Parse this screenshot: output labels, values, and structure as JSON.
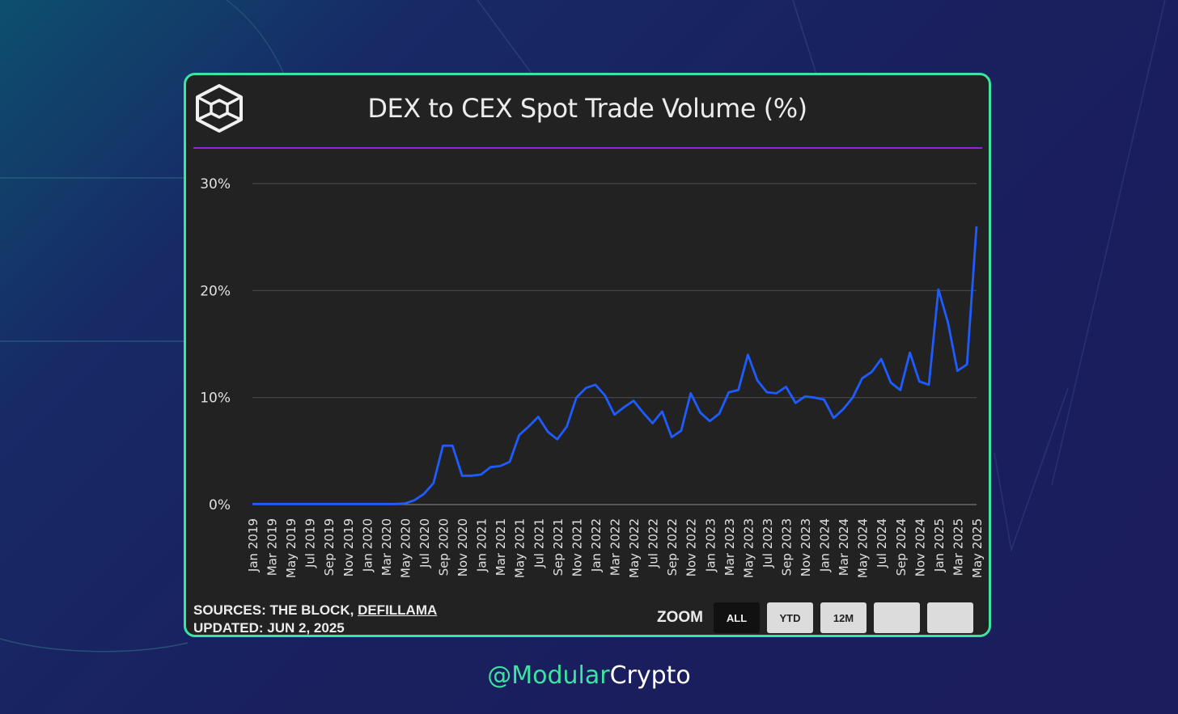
{
  "brand": {
    "logo_icon": "the-block-cube-icon",
    "handle_accent": "@Modular",
    "handle_rest": "Crypto",
    "accent_color": "#3de3a0",
    "divider_color": "#9b1fd8"
  },
  "chart_data": {
    "type": "line",
    "title": "DEX to CEX Spot Trade Volume (%)",
    "xlabel": "",
    "ylabel": "",
    "ylim": [
      0,
      30
    ],
    "y_ticks": [
      0,
      10,
      20,
      30
    ],
    "y_tick_labels": [
      "0%",
      "10%",
      "20%",
      "30%"
    ],
    "grid": true,
    "x_tick_labels": [
      "Jan 2019",
      "Mar 2019",
      "May 2019",
      "Jul 2019",
      "Sep 2019",
      "Nov 2019",
      "Jan 2020",
      "Mar 2020",
      "May 2020",
      "Jul 2020",
      "Sep 2020",
      "Nov 2020",
      "Jan 2021",
      "Mar 2021",
      "May 2021",
      "Jul 2021",
      "Sep 2021",
      "Nov 2021",
      "Jan 2022",
      "Mar 2022",
      "May 2022",
      "Jul 2022",
      "Sep 2022",
      "Nov 2022",
      "Jan 2023",
      "Mar 2023",
      "May 2023",
      "Jul 2023",
      "Sep 2023",
      "Nov 2023",
      "Jan 2024",
      "Mar 2024",
      "May 2024",
      "Jul 2024",
      "Sep 2024",
      "Nov 2024",
      "Jan 2025",
      "Mar 2025",
      "May 2025"
    ],
    "series": [
      {
        "color": "#1f5cff",
        "x": [
          "Jan 2019",
          "Feb 2019",
          "Mar 2019",
          "Apr 2019",
          "May 2019",
          "Jun 2019",
          "Jul 2019",
          "Aug 2019",
          "Sep 2019",
          "Oct 2019",
          "Nov 2019",
          "Dec 2019",
          "Jan 2020",
          "Feb 2020",
          "Mar 2020",
          "Apr 2020",
          "May 2020",
          "Jun 2020",
          "Jul 2020",
          "Aug 2020",
          "Sep 2020",
          "Oct 2020",
          "Nov 2020",
          "Dec 2020",
          "Jan 2021",
          "Feb 2021",
          "Mar 2021",
          "Apr 2021",
          "May 2021",
          "Jun 2021",
          "Jul 2021",
          "Aug 2021",
          "Sep 2021",
          "Oct 2021",
          "Nov 2021",
          "Dec 2021",
          "Jan 2022",
          "Feb 2022",
          "Mar 2022",
          "Apr 2022",
          "May 2022",
          "Jun 2022",
          "Jul 2022",
          "Aug 2022",
          "Sep 2022",
          "Oct 2022",
          "Nov 2022",
          "Dec 2022",
          "Jan 2023",
          "Feb 2023",
          "Mar 2023",
          "Apr 2023",
          "May 2023",
          "Jun 2023",
          "Jul 2023",
          "Aug 2023",
          "Sep 2023",
          "Oct 2023",
          "Nov 2023",
          "Dec 2023",
          "Jan 2024",
          "Feb 2024",
          "Mar 2024",
          "Apr 2024",
          "May 2024",
          "Jun 2024",
          "Jul 2024",
          "Aug 2024",
          "Sep 2024",
          "Oct 2024",
          "Nov 2024",
          "Dec 2024",
          "Jan 2025",
          "Feb 2025",
          "Mar 2025",
          "Apr 2025",
          "May 2025"
        ],
        "values": [
          0.05,
          0.05,
          0.05,
          0.05,
          0.05,
          0.05,
          0.05,
          0.05,
          0.05,
          0.05,
          0.05,
          0.05,
          0.05,
          0.05,
          0.05,
          0.05,
          0.1,
          0.4,
          1.0,
          2.0,
          5.5,
          5.5,
          2.7,
          2.7,
          2.8,
          3.5,
          3.6,
          4.0,
          6.5,
          7.3,
          8.2,
          6.8,
          6.1,
          7.3,
          10.0,
          10.9,
          11.2,
          10.2,
          8.4,
          9.1,
          9.7,
          8.6,
          7.6,
          8.7,
          6.3,
          6.9,
          10.4,
          8.6,
          7.8,
          8.5,
          10.5,
          10.7,
          14.0,
          11.6,
          10.5,
          10.4,
          11.0,
          9.5,
          10.1,
          10.0,
          9.8,
          8.1,
          8.9,
          10.0,
          11.8,
          12.4,
          13.6,
          11.4,
          10.7,
          14.2,
          11.5,
          11.2,
          20.1,
          17.0,
          12.5,
          13.1,
          26.0
        ]
      }
    ]
  },
  "footer": {
    "sources_prefix": "SOURCES: THE BLOCK, ",
    "sources_link": "DEFILLAMA",
    "updated": "UPDATED: JUN 2, 2025"
  },
  "zoom": {
    "label": "ZOOM",
    "buttons": [
      "ALL",
      "YTD",
      "12M",
      "",
      ""
    ],
    "active": "ALL"
  }
}
